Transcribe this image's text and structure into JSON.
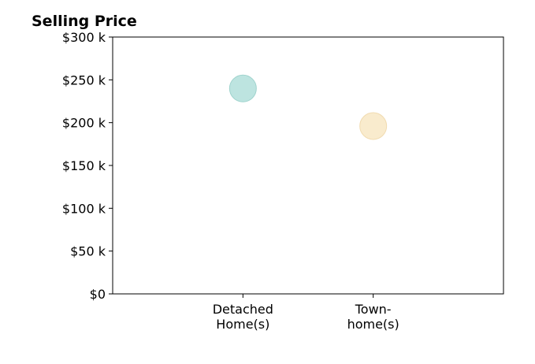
{
  "chart_data": {
    "type": "scatter",
    "title": "Selling Price",
    "xlabel": "",
    "ylabel": "",
    "categories": [
      [
        "Detached",
        "Home(s)"
      ],
      [
        "Town-",
        "home(s)"
      ]
    ],
    "values": [
      240000,
      196000
    ],
    "point_colors": [
      "#b2dfdb",
      "#f8e7c4"
    ],
    "point_edge_colors": [
      "#9fd3cd",
      "#f1dbb0"
    ],
    "ylim": [
      0,
      300000
    ],
    "yticks": [
      0,
      50000,
      100000,
      150000,
      200000,
      250000,
      300000
    ],
    "ytick_labels": [
      "$0",
      "$50 k",
      "$100 k",
      "$150 k",
      "$200 k",
      "$250 k",
      "$300 k"
    ],
    "x_range": [
      -1,
      2
    ],
    "grid": false,
    "legend": "none"
  }
}
